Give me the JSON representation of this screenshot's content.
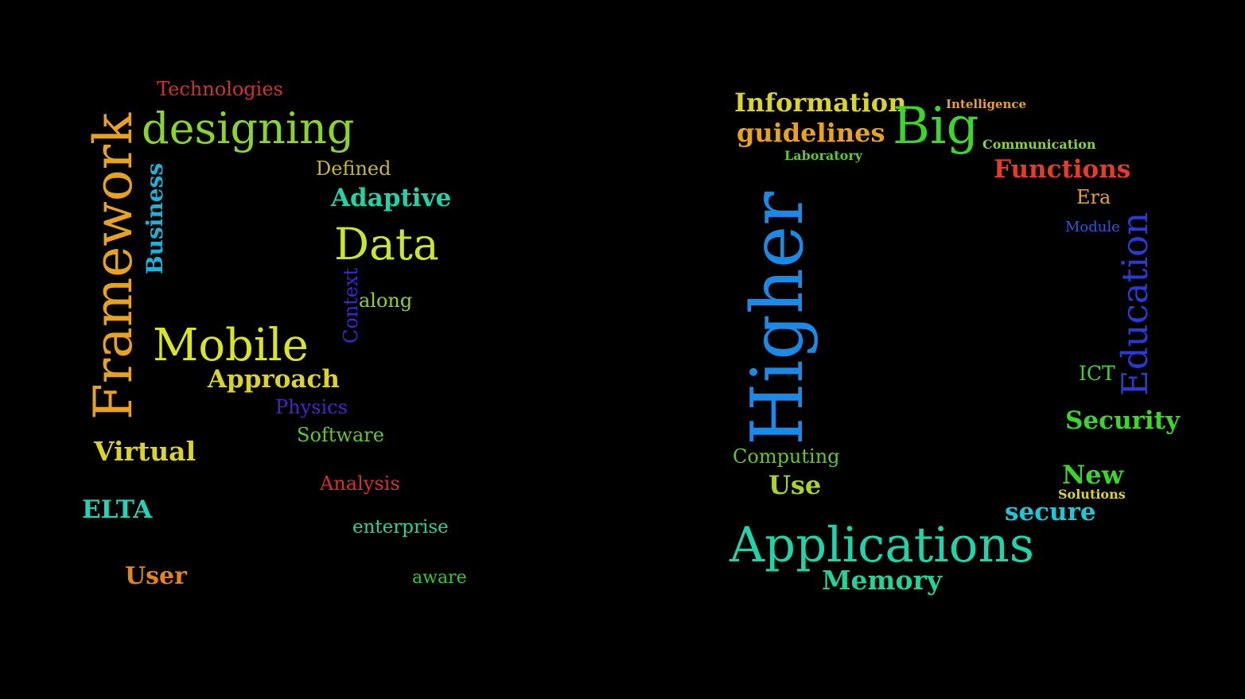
{
  "clouds": [
    {
      "id": "cloud-left",
      "words": [
        {
          "text": "Framework",
          "color": "#e8a21c",
          "rotate": true,
          "bold": false
        },
        {
          "text": "Technologies",
          "color": "#d43030",
          "rotate": false,
          "bold": false
        },
        {
          "text": "designing",
          "color": "#8bd42a",
          "rotate": false,
          "bold": false
        },
        {
          "text": "Business",
          "color": "#1ab3d9",
          "rotate": true,
          "bold": true
        },
        {
          "text": "Defined",
          "color": "#c9b62a",
          "rotate": false,
          "bold": false
        },
        {
          "text": "Adaptive",
          "color": "#1fd4a8",
          "rotate": false,
          "bold": true
        },
        {
          "text": "Data",
          "color": "#c8e62a",
          "rotate": false,
          "bold": false
        },
        {
          "text": "Context",
          "color": "#3a2ad6",
          "rotate": true,
          "bold": false
        },
        {
          "text": "along",
          "color": "#8bd42a",
          "rotate": false,
          "bold": false
        },
        {
          "text": "Mobile",
          "color": "#d9e61f",
          "rotate": false,
          "bold": false
        },
        {
          "text": "Approach",
          "color": "#d9d426",
          "rotate": false,
          "bold": true
        },
        {
          "text": "Physics",
          "color": "#4a22c9",
          "rotate": false,
          "bold": false
        },
        {
          "text": "Software",
          "color": "#5ec92a",
          "rotate": false,
          "bold": false
        },
        {
          "text": "Virtual",
          "color": "#d9d426",
          "rotate": false,
          "bold": true
        },
        {
          "text": "Analysis",
          "color": "#d43030",
          "rotate": false,
          "bold": false
        },
        {
          "text": "ELTA",
          "color": "#1fd4b8",
          "rotate": false,
          "bold": true
        },
        {
          "text": "enterprise",
          "color": "#1fd49b",
          "rotate": false,
          "bold": false
        },
        {
          "text": "User",
          "color": "#e8821c",
          "rotate": false,
          "bold": true
        },
        {
          "text": "aware",
          "color": "#2ac93a",
          "rotate": false,
          "bold": false
        }
      ]
    },
    {
      "id": "cloud-right",
      "words": [
        {
          "text": "Information",
          "color": "#d9d426",
          "rotate": false,
          "bold": true
        },
        {
          "text": "Intelligence",
          "color": "#e8a21c",
          "rotate": false,
          "bold": true
        },
        {
          "text": "guidelines",
          "color": "#e8a21c",
          "rotate": false,
          "bold": true
        },
        {
          "text": "Big",
          "color": "#3ad62a",
          "rotate": false,
          "bold": false
        },
        {
          "text": "Communication",
          "color": "#8bd42a",
          "rotate": false,
          "bold": true
        },
        {
          "text": "Laboratory",
          "color": "#5ec92a",
          "rotate": false,
          "bold": true
        },
        {
          "text": "Functions",
          "color": "#e83a2a",
          "rotate": false,
          "bold": true
        },
        {
          "text": "Higher",
          "color": "#1a8ae8",
          "rotate": true,
          "bold": false
        },
        {
          "text": "Era",
          "color": "#e8a21c",
          "rotate": false,
          "bold": false
        },
        {
          "text": "Module",
          "color": "#2a5ad6",
          "rotate": false,
          "bold": false
        },
        {
          "text": "Education",
          "color": "#2a3ad6",
          "rotate": true,
          "bold": false
        },
        {
          "text": "ICT",
          "color": "#3ad62a",
          "rotate": false,
          "bold": false
        },
        {
          "text": "Security",
          "color": "#3ad62a",
          "rotate": false,
          "bold": true
        },
        {
          "text": "Computing",
          "color": "#5ec92a",
          "rotate": false,
          "bold": false
        },
        {
          "text": "Use",
          "color": "#a8d42a",
          "rotate": false,
          "bold": true
        },
        {
          "text": "New",
          "color": "#3ad62a",
          "rotate": false,
          "bold": true
        },
        {
          "text": "Solutions",
          "color": "#d9d426",
          "rotate": false,
          "bold": true
        },
        {
          "text": "secure",
          "color": "#1ac9d9",
          "rotate": false,
          "bold": true
        },
        {
          "text": "Applications",
          "color": "#1fd4a8",
          "rotate": false,
          "bold": false
        },
        {
          "text": "Memory",
          "color": "#1fd49b",
          "rotate": false,
          "bold": true
        }
      ]
    }
  ]
}
